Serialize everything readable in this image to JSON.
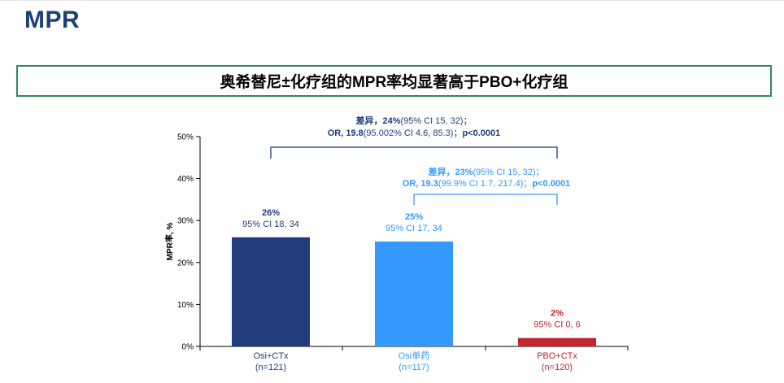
{
  "page": {
    "title": "MPR"
  },
  "headline": "奥希替尼±化疗组的MPR率均显著高于PBO+化疗组",
  "colors": {
    "title": "#1c3f7a",
    "border": "#2e8b57",
    "osi_ctx": "#213c7a",
    "osi_mono": "#3399ff",
    "pbo_ctx": "#c1272d",
    "bracket1": "#1f3d7a",
    "bracket2": "#3399ff"
  },
  "chart_data": {
    "type": "bar",
    "ylabel": "MPR率, %",
    "ylim": [
      0,
      50
    ],
    "yticks": [
      0,
      10,
      20,
      30,
      40,
      50
    ],
    "ytick_labels": [
      "0%",
      "10%",
      "20%",
      "30%",
      "40%",
      "50%"
    ],
    "categories": [
      {
        "line1": "Osi+CTx",
        "line2": "(n=121)"
      },
      {
        "line1": "Osi单药",
        "line2": "(n=117)"
      },
      {
        "line1": "PBO+CTx",
        "line2": "(n=120)"
      }
    ],
    "values": [
      26,
      25,
      2
    ],
    "bar_colors": [
      "#213c7a",
      "#3399ff",
      "#c1272d"
    ],
    "category_label_colors": [
      "#1f3d7a",
      "#3399ff",
      "#c1272d"
    ],
    "data_labels": [
      {
        "value": "26%",
        "ci": "95% CI 18, 34"
      },
      {
        "value": "25%",
        "ci": "95% CI 17, 34"
      },
      {
        "value": "2%",
        "ci": "95% CI 0, 6"
      }
    ],
    "comparisons": [
      {
        "from": 0,
        "to": 2,
        "line1_bold": "差异，24%",
        "line1_rest": "(95% CI 15, 32)；",
        "line2_bold": "OR, 19.8",
        "line2_rest": "(95.002% CI 4.6, 85.3)；",
        "line2_p": "p<0.0001",
        "color": "#1f3d7a"
      },
      {
        "from": 1,
        "to": 2,
        "line1_bold": "差异，23%",
        "line1_rest": "(95% CI 15, 32)；",
        "line2_bold": "OR, 19.3",
        "line2_rest": "(99.9% CI 1.7, 217.4)；",
        "line2_p": "p<0.0001",
        "color": "#3399ff"
      }
    ]
  }
}
